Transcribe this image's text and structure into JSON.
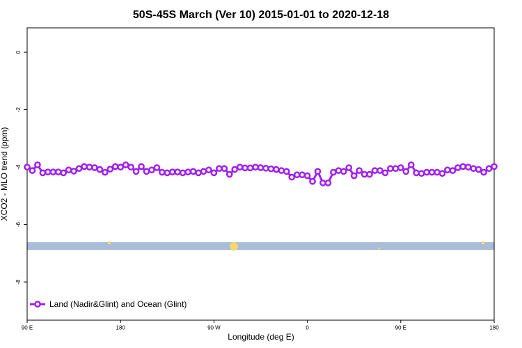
{
  "chart_data": {
    "type": "line",
    "title": "50S-45S March (Ver 10)   2015-01-01 to 2020-12-18",
    "x_label": "Longitude (deg E)",
    "y_label": "XCO2 - MLO trend (ppm)",
    "xlim": [
      90,
      540
    ],
    "ylim": [
      -9.33,
      0.85
    ],
    "xticks": [
      {
        "value": 90,
        "label": "90 E"
      },
      180,
      {
        "value": 270,
        "label": "90 W"
      },
      {
        "value": 360,
        "label": "0"
      },
      {
        "value": 450,
        "label": "90 E"
      },
      {
        "value": 540,
        "label": "180"
      }
    ],
    "yticks": [
      0,
      -2,
      -4,
      -6,
      -8
    ],
    "legend": "bottom-left",
    "x": [
      90,
      95,
      100,
      105,
      110,
      115,
      120,
      125,
      130,
      135,
      140,
      145,
      150,
      155,
      160,
      165,
      170,
      175,
      180,
      185,
      190,
      195,
      200,
      205,
      210,
      215,
      220,
      225,
      230,
      235,
      240,
      245,
      250,
      255,
      260,
      265,
      270,
      275,
      280,
      285,
      290,
      295,
      300,
      305,
      310,
      315,
      320,
      325,
      330,
      335,
      340,
      345,
      350,
      355,
      360,
      365,
      370,
      375,
      380,
      385,
      390,
      395,
      400,
      405,
      410,
      415,
      420,
      425,
      430,
      435,
      440,
      445,
      450,
      455,
      460,
      465,
      470,
      475,
      480,
      485,
      490,
      495,
      500,
      505,
      510,
      515,
      520,
      525,
      530,
      535,
      540
    ],
    "series": [
      {
        "name": "Land (Nadir&Glint) and Ocean (Glint)",
        "color": "#a020f0",
        "values": [
          -4.0,
          -4.12,
          -3.92,
          -4.2,
          -4.17,
          -4.17,
          -4.17,
          -4.2,
          -4.1,
          -4.14,
          -4.05,
          -3.98,
          -4.0,
          -4.02,
          -4.08,
          -4.18,
          -4.07,
          -3.98,
          -4.0,
          -3.92,
          -4.0,
          -4.15,
          -3.98,
          -4.15,
          -4.1,
          -4.02,
          -4.18,
          -4.2,
          -4.17,
          -4.17,
          -4.2,
          -4.17,
          -4.15,
          -4.2,
          -4.15,
          -4.1,
          -4.2,
          -4.05,
          -4.05,
          -4.25,
          -4.08,
          -4.0,
          -4.03,
          -4.03,
          -4.0,
          -4.02,
          -4.04,
          -4.06,
          -4.08,
          -4.12,
          -4.15,
          -4.35,
          -4.27,
          -4.27,
          -4.3,
          -4.5,
          -4.15,
          -4.55,
          -4.55,
          -4.18,
          -4.12,
          -4.15,
          -4.02,
          -4.3,
          -4.12,
          -4.25,
          -4.25,
          -4.12,
          -4.12,
          -4.2,
          -4.05,
          -4.05,
          -4.02,
          -4.15,
          -3.92,
          -4.2,
          -4.22,
          -4.18,
          -4.18,
          -4.18,
          -4.22,
          -4.1,
          -4.12,
          -4.02,
          -3.98,
          -4.0,
          -4.05,
          -4.08,
          -4.18,
          -4.05,
          -3.98
        ]
      }
    ]
  }
}
